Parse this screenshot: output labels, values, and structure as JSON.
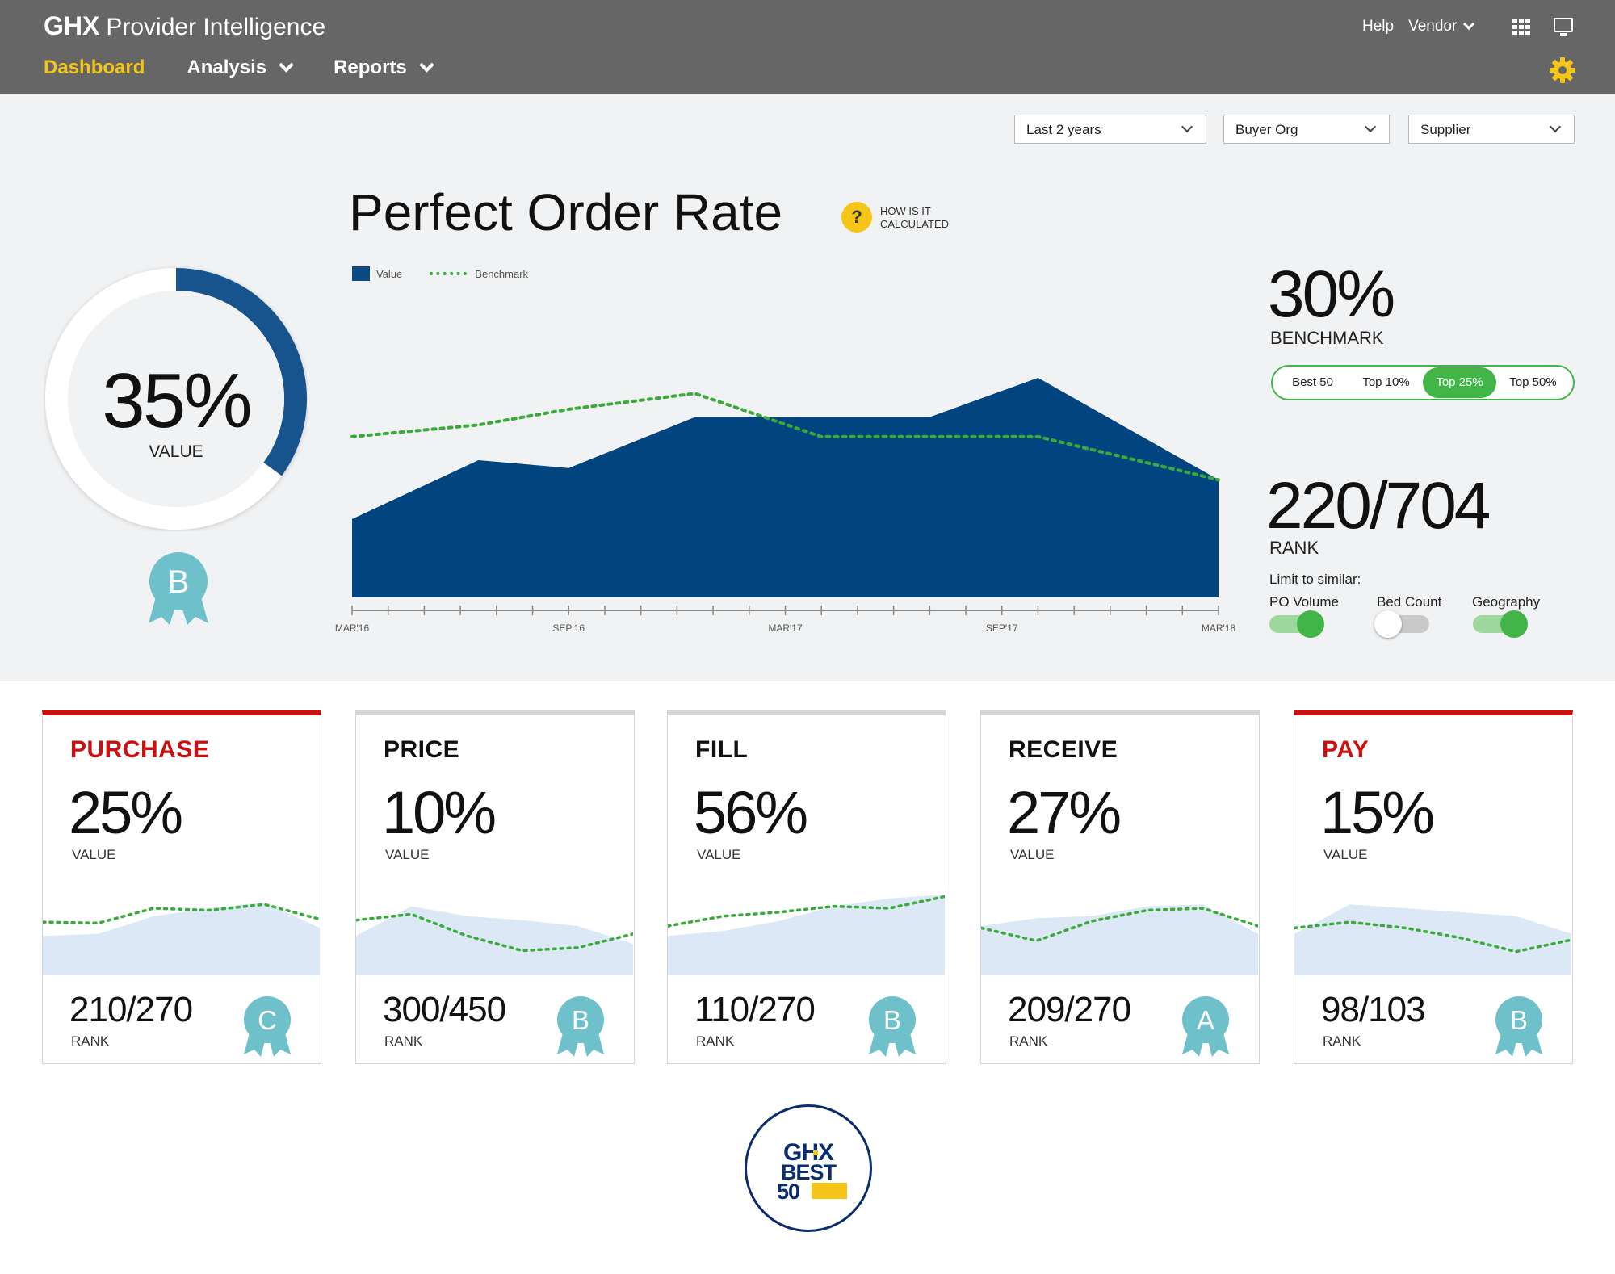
{
  "header": {
    "brand_bold": "GHX",
    "brand_rest": "Provider Intelligence",
    "nav": [
      {
        "label": "Dashboard"
      },
      {
        "label": "Analysis"
      },
      {
        "label": "Reports"
      }
    ],
    "help_label": "Help",
    "vendor_label": "Vendor"
  },
  "filters": {
    "time": "Last 2 years",
    "buyer": "Buyer Org",
    "supplier": "Supplier"
  },
  "main": {
    "title": "Perfect Order Rate",
    "help_icon": "?",
    "help_text": "HOW IS IT CALCULATED",
    "donut_value": "35%",
    "donut_label": "VALUE",
    "donut_fraction": 0.35,
    "grade": "B",
    "benchmark_value": "30%",
    "benchmark_label": "BENCHMARK",
    "segments": [
      "Best 50",
      "Top 10%",
      "Top 25%",
      "Top 50%"
    ],
    "segment_selected": "Top 25%",
    "rank_value": "220/704",
    "rank_label": "RANK",
    "limit_label": "Limit to similar:",
    "toggles": [
      {
        "label": "PO Volume",
        "on": true
      },
      {
        "label": "Bed Count",
        "on": false
      },
      {
        "label": "Geography",
        "on": true
      }
    ]
  },
  "chart_data": {
    "type": "area",
    "legend": [
      "Value",
      "Benchmark"
    ],
    "x_ticks": [
      "MAR'16",
      "SEP'16",
      "MAR'17",
      "SEP'17",
      "MAR'18"
    ],
    "x": [
      0,
      3.5,
      6,
      9.5,
      13,
      16,
      19,
      24
    ],
    "series": [
      {
        "name": "Value",
        "values": [
          10,
          17.5,
          16.5,
          23,
          23,
          23,
          28,
          15
        ]
      },
      {
        "name": "Benchmark",
        "values": [
          20.5,
          22,
          24,
          26,
          20.5,
          20.5,
          20.5,
          15
        ]
      }
    ],
    "ylim": [
      0,
      35
    ],
    "xlim": [
      0,
      24
    ],
    "colors": {
      "value": "#0c4a86",
      "benchmark": "#3aaa3a"
    }
  },
  "cards": [
    {
      "title": "PURCHASE",
      "value": "25%",
      "value_label": "VALUE",
      "rank": "210/270",
      "rank_label": "RANK",
      "grade": "C",
      "accent": "#cc1010",
      "area": [
        40,
        42,
        60,
        68,
        74,
        48
      ],
      "line": [
        54,
        53,
        68,
        66,
        72,
        57
      ]
    },
    {
      "title": "PRICE",
      "value": "10%",
      "value_label": "VALUE",
      "rank": "300/450",
      "rank_label": "RANK",
      "grade": "B",
      "accent": "#d6d6d6",
      "area": [
        40,
        70,
        60,
        56,
        50,
        32
      ],
      "line": [
        56,
        62,
        40,
        25,
        28,
        42
      ]
    },
    {
      "title": "FILL",
      "value": "56%",
      "value_label": "VALUE",
      "rank": "110/270",
      "rank_label": "RANK",
      "grade": "B",
      "accent": "#d6d6d6",
      "area": [
        40,
        45,
        55,
        70,
        78,
        82
      ],
      "line": [
        50,
        60,
        64,
        70,
        68,
        80
      ]
    },
    {
      "title": "RECEIVE",
      "value": "27%",
      "value_label": "VALUE",
      "rank": "209/270",
      "rank_label": "RANK",
      "grade": "A",
      "accent": "#d6d6d6",
      "area": [
        50,
        58,
        60,
        70,
        72,
        42
      ],
      "line": [
        48,
        35,
        55,
        66,
        68,
        50
      ]
    },
    {
      "title": "PAY",
      "value": "15%",
      "value_label": "VALUE",
      "rank": "98/103",
      "rank_label": "RANK",
      "grade": "B",
      "accent": "#cc1010",
      "area": [
        42,
        72,
        68,
        64,
        60,
        42
      ],
      "line": [
        48,
        54,
        48,
        38,
        24,
        36
      ]
    }
  ],
  "logo": {
    "line1": "GHX",
    "line2": "BEST",
    "line3": "50"
  },
  "icons": [
    "grid-icon",
    "monitor-icon",
    "gear-icon",
    "help-icon",
    "chevron-down-icon",
    "ribbon-icon"
  ]
}
